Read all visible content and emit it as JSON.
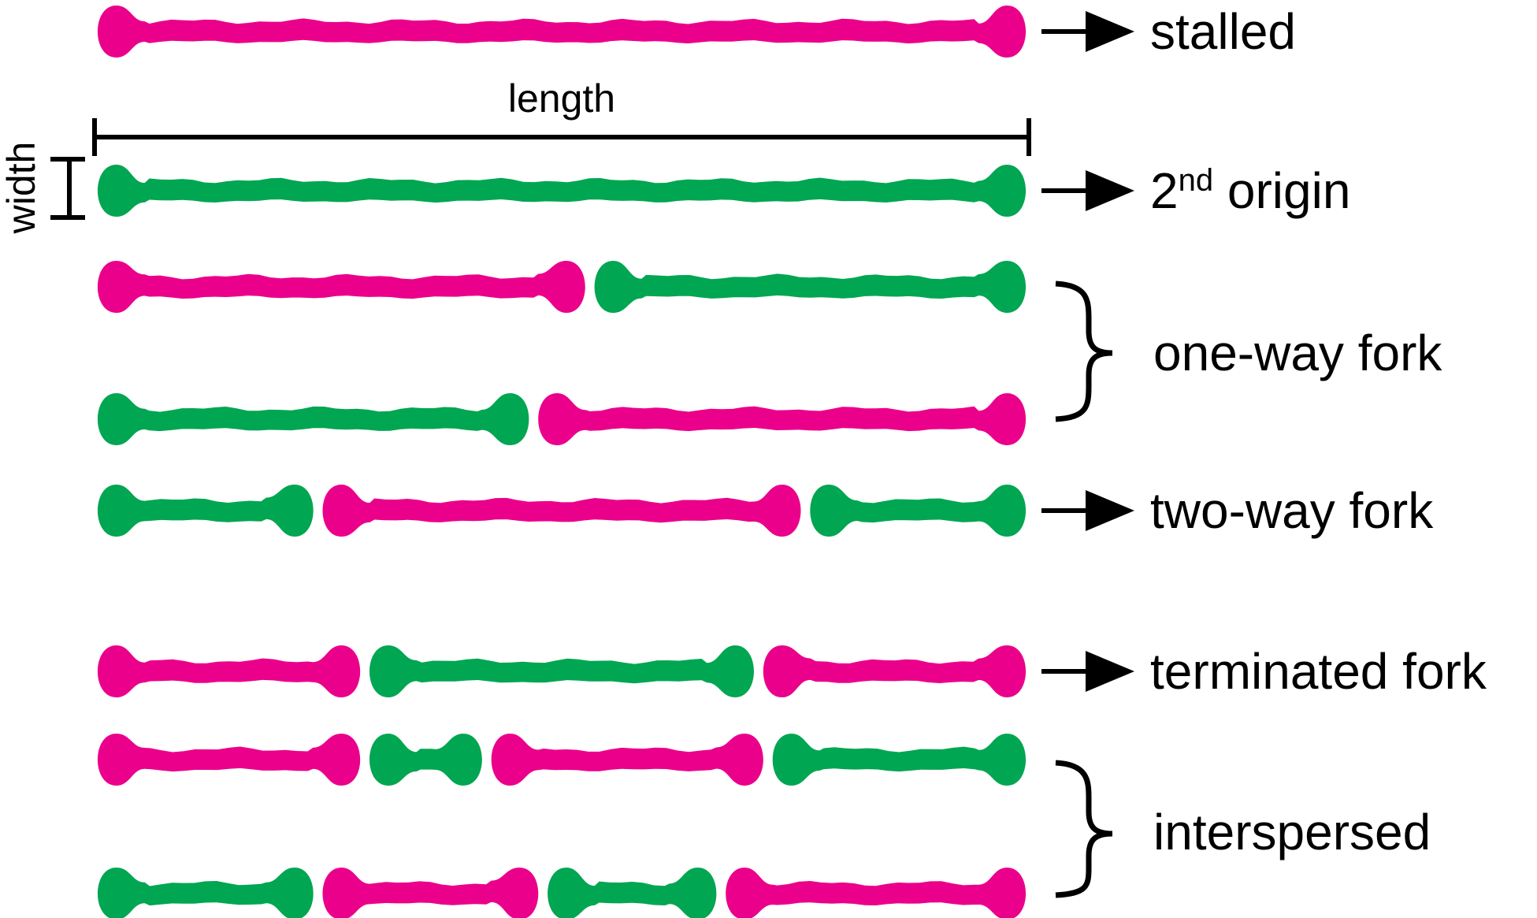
{
  "colors": {
    "red": "#EB008B",
    "green": "#00A651",
    "ink": "#000000"
  },
  "measure": {
    "length_label": "length",
    "width_label": "width"
  },
  "labels": {
    "stalled": "stalled",
    "second_origin_num": "2",
    "second_origin_sup": "nd",
    "second_origin_word": " origin",
    "one_way_fork": "one-way fork",
    "two_way_fork": "two-way fork",
    "terminated_fork": "terminated fork",
    "interspersed": "interspersed"
  },
  "fibers": [
    {
      "name": "stalled",
      "segments": [
        [
          "red",
          0,
          1
        ]
      ]
    },
    {
      "name": "second-origin",
      "segments": [
        [
          "green",
          0,
          1
        ]
      ]
    },
    {
      "name": "one-way-fork-a",
      "segments": [
        [
          "red",
          0,
          0.53
        ],
        [
          "green",
          0.53,
          1
        ]
      ]
    },
    {
      "name": "one-way-fork-b",
      "segments": [
        [
          "green",
          0,
          0.47
        ],
        [
          "red",
          0.47,
          1
        ]
      ]
    },
    {
      "name": "two-way-fork",
      "segments": [
        [
          "green",
          0,
          0.24
        ],
        [
          "red",
          0.24,
          0.76
        ],
        [
          "green",
          0.76,
          1
        ]
      ]
    },
    {
      "name": "terminated-fork",
      "segments": [
        [
          "red",
          0,
          0.29
        ],
        [
          "green",
          0.29,
          0.71
        ],
        [
          "red",
          0.71,
          1
        ]
      ]
    },
    {
      "name": "interspersed-a",
      "segments": [
        [
          "red",
          0,
          0.29
        ],
        [
          "green",
          0.29,
          0.42
        ],
        [
          "red",
          0.42,
          0.72
        ],
        [
          "green",
          0.72,
          1
        ]
      ]
    },
    {
      "name": "interspersed-b",
      "segments": [
        [
          "green",
          0,
          0.24
        ],
        [
          "red",
          0.24,
          0.48
        ],
        [
          "green",
          0.48,
          0.67
        ],
        [
          "red",
          0.67,
          1
        ]
      ]
    }
  ]
}
